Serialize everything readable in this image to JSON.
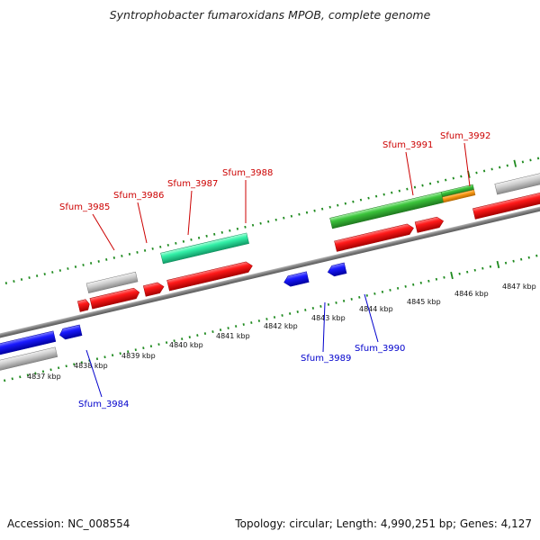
{
  "title": "Syntrophobacter fumaroxidans MPOB, complete genome",
  "footer": {
    "accession": "Accession: NC_008554",
    "info": "Topology: circular; Length: 4,990,251 bp; Genes: 4,127"
  },
  "colors": {
    "backbone": "#7a7a7a",
    "tick": "#1e8a1e",
    "forward_label": "#cc0000",
    "reverse_label": "#0000cc",
    "cds_red": "#ff1a1a",
    "cds_blue": "#1a1aff",
    "cds_grey": "#c8c8c8",
    "cds_teal": "#33f0a8",
    "cds_green": "#3cc43c",
    "cds_orange": "#ff9d1a"
  },
  "scale_labels": [
    "4837 kbp",
    "4838 kbp",
    "4839 kbp",
    "4840 kbp",
    "4841 kbp",
    "4842 kbp",
    "4843 kbp",
    "4844 kbp",
    "4845 kbp",
    "4846 kbp",
    "4847 kbp"
  ],
  "forward_genes": [
    "Sfum_3985",
    "Sfum_3986",
    "Sfum_3987",
    "Sfum_3988",
    "Sfum_3991",
    "Sfum_3992"
  ],
  "reverse_genes": [
    "Sfum_3984",
    "Sfum_3989",
    "Sfum_3990"
  ]
}
